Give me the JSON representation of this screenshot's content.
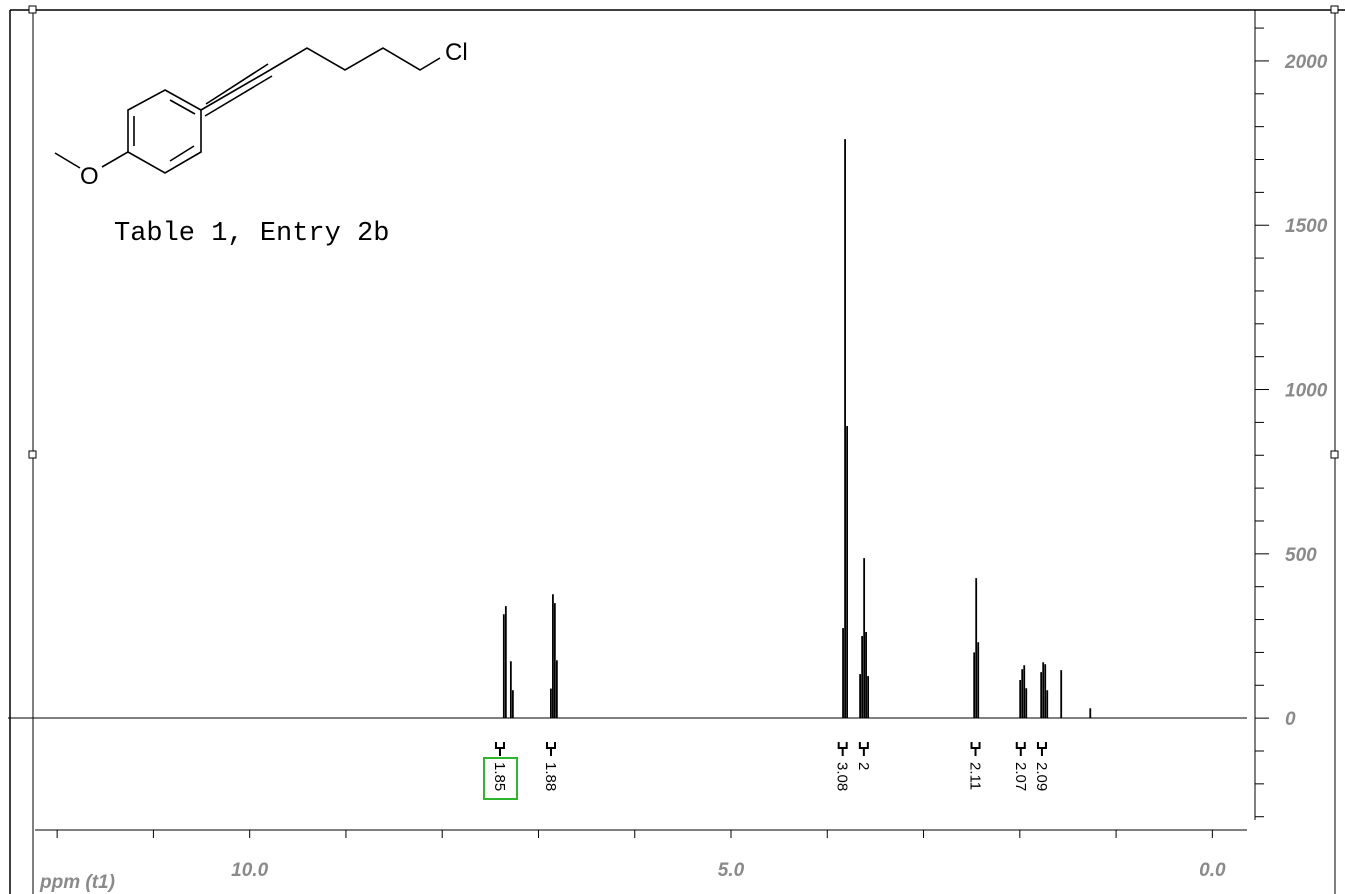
{
  "chart_data": {
    "type": "spectrum",
    "annotation": "Table 1, Entry 2b",
    "structure_labels": [
      "Cl",
      "O"
    ],
    "x_label": "ppm (t1)",
    "x": [
      7.36,
      7.339,
      7.287,
      7.266,
      6.871,
      6.85,
      6.83,
      6.809,
      3.836,
      3.815,
      3.794,
      3.659,
      3.638,
      3.617,
      3.597,
      3.576,
      2.474,
      2.453,
      2.432,
      1.996,
      1.975,
      1.954,
      1.933,
      1.778,
      1.757,
      1.736,
      1.715,
      1.57,
      1.268
    ],
    "values": [
      316,
      341,
      173,
      85,
      90,
      377,
      350,
      176,
      274,
      1762,
      889,
      134,
      250,
      487,
      262,
      128,
      200,
      426,
      231,
      116,
      149,
      161,
      91,
      140,
      170,
      164,
      85,
      146,
      30
    ],
    "color": "#000000",
    "xlim": [
      12.23,
      -0.36
    ],
    "xticks": [
      {
        "value": 10,
        "label": "10.0"
      },
      {
        "value": 5,
        "label": "5.0"
      },
      {
        "value": 0,
        "label": "0.0"
      }
    ],
    "xminorticks": [
      12,
      11,
      9,
      8,
      7,
      6,
      4,
      3,
      2,
      1
    ],
    "ylim": [
      -310,
      2155
    ],
    "yticks": [
      0,
      500,
      1000,
      1500,
      2000
    ],
    "yminorticks": [
      -300,
      -200,
      -100,
      100,
      200,
      300,
      400,
      600,
      700,
      800,
      900,
      1100,
      1200,
      1300,
      1400,
      1600,
      1700,
      1800,
      1900,
      2100
    ],
    "integrals": {
      "x": [
        7.4,
        6.87,
        3.84,
        3.62,
        2.46,
        1.99,
        1.77
      ],
      "values": [
        1.85,
        1.88,
        3.08,
        2.0,
        2.11,
        2.07,
        2.09
      ],
      "highlight": 0
    }
  }
}
